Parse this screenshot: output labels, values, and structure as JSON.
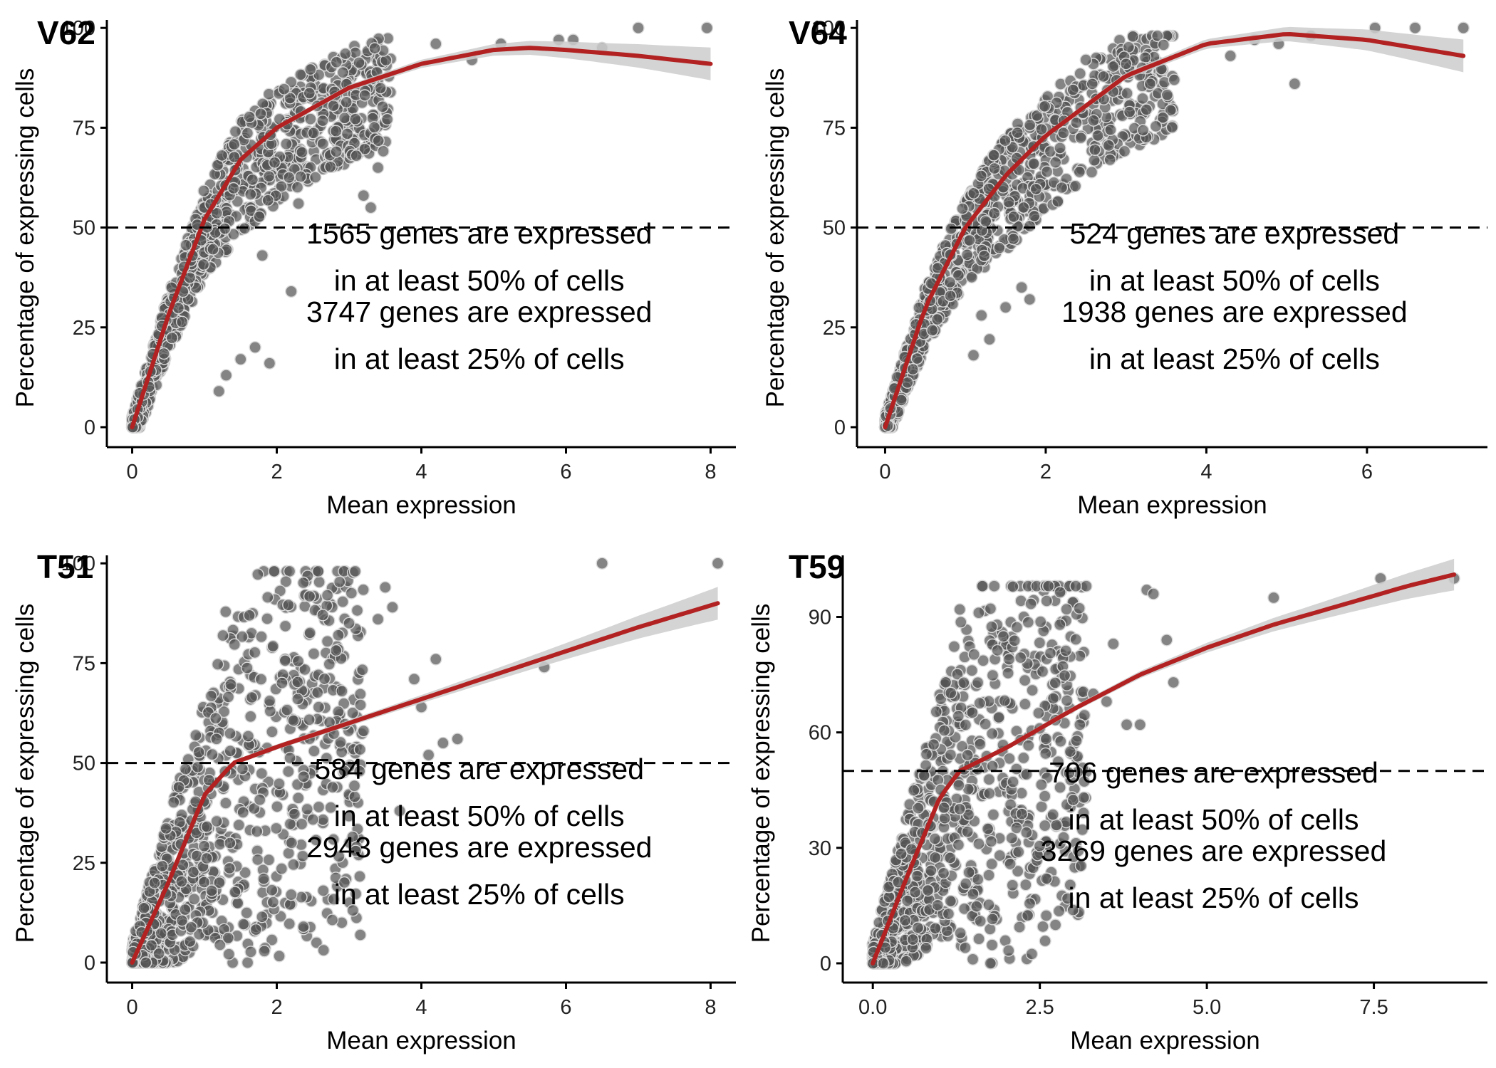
{
  "chart_data": [
    {
      "type": "scatter",
      "title": "V62",
      "xlabel": "Mean expression",
      "ylabel": "Percentage of expressing cells",
      "xlim": [
        -0.35,
        8.35
      ],
      "ylim": [
        -5,
        102
      ],
      "xticks": [
        0,
        2,
        4,
        6,
        8
      ],
      "yticks": [
        0,
        25,
        50,
        75,
        100
      ],
      "xtick_labels": [
        "0",
        "2",
        "4",
        "6",
        "8"
      ],
      "ytick_labels": [
        "0",
        "25",
        "50",
        "75",
        "100"
      ],
      "threshold_line": 50,
      "annotations": [
        "1565 genes are expressed",
        "in at least 50% of cells",
        "3747 genes are expressed",
        "in at least 25% of cells"
      ],
      "annotation_anchor": [
        4.8,
        46
      ],
      "cloud_type": "saturating",
      "trend": [
        [
          0,
          0
        ],
        [
          0.5,
          28
        ],
        [
          1,
          52
        ],
        [
          1.5,
          67
        ],
        [
          2,
          75
        ],
        [
          3,
          85
        ],
        [
          4,
          91
        ],
        [
          5,
          94.5
        ],
        [
          5.5,
          95
        ],
        [
          6,
          94.5
        ],
        [
          7,
          93
        ],
        [
          8,
          91
        ]
      ],
      "outliers": [
        [
          1.5,
          17
        ],
        [
          1.7,
          20
        ],
        [
          1.9,
          16
        ],
        [
          2.2,
          34
        ],
        [
          2.3,
          56
        ],
        [
          3.1,
          68
        ],
        [
          3.2,
          58
        ],
        [
          3.3,
          55
        ],
        [
          3.4,
          65
        ],
        [
          1.8,
          43
        ],
        [
          4.2,
          96
        ],
        [
          4.7,
          92
        ],
        [
          5.1,
          96
        ],
        [
          5.9,
          97
        ],
        [
          6.1,
          97
        ],
        [
          7,
          100
        ],
        [
          7.95,
          100
        ],
        [
          6.5,
          95
        ],
        [
          2.8,
          84
        ],
        [
          1.3,
          13
        ],
        [
          1.2,
          9
        ]
      ],
      "colors": {
        "points": "#555555",
        "trend": "#b22222",
        "band": "#cccccc"
      }
    },
    {
      "type": "scatter",
      "title": "V64",
      "xlabel": "Mean expression",
      "ylabel": "Percentage of expressing cells",
      "xlim": [
        -0.35,
        7.5
      ],
      "ylim": [
        -5,
        102
      ],
      "xticks": [
        0,
        2,
        4,
        6
      ],
      "yticks": [
        0,
        25,
        50,
        75,
        100
      ],
      "xtick_labels": [
        "0",
        "2",
        "4",
        "6"
      ],
      "ytick_labels": [
        "0",
        "25",
        "50",
        "75",
        "100"
      ],
      "threshold_line": 50,
      "annotations": [
        "524 genes are expressed",
        "in at least 50% of cells",
        "1938 genes are expressed",
        "in at least 25% of cells"
      ],
      "annotation_anchor": [
        4.35,
        46
      ],
      "cloud_type": "saturating",
      "trend": [
        [
          0,
          0
        ],
        [
          0.5,
          30
        ],
        [
          1,
          50
        ],
        [
          1.5,
          63
        ],
        [
          2,
          73
        ],
        [
          3,
          88
        ],
        [
          4,
          96
        ],
        [
          5,
          98.5
        ],
        [
          6,
          97
        ],
        [
          7.2,
          93
        ]
      ],
      "outliers": [
        [
          1.5,
          30
        ],
        [
          1.7,
          35
        ],
        [
          1.8,
          32
        ],
        [
          1.3,
          22
        ],
        [
          1.1,
          18
        ],
        [
          2.2,
          60
        ],
        [
          2.5,
          92
        ],
        [
          3,
          91
        ],
        [
          3.3,
          86
        ],
        [
          3.6,
          87
        ],
        [
          4.3,
          93
        ],
        [
          4.6,
          97
        ],
        [
          4.9,
          96
        ],
        [
          5.3,
          98
        ],
        [
          6.1,
          100
        ],
        [
          6.6,
          100
        ],
        [
          7.2,
          100
        ],
        [
          5.1,
          86
        ],
        [
          1.2,
          28
        ]
      ],
      "colors": {
        "points": "#555555",
        "trend": "#b22222",
        "band": "#cccccc"
      }
    },
    {
      "type": "scatter",
      "title": "T51",
      "xlabel": "Mean expression",
      "ylabel": "Percentage of expressing cells",
      "xlim": [
        -0.35,
        8.35
      ],
      "ylim": [
        -5,
        102
      ],
      "xticks": [
        0,
        2,
        4,
        6,
        8
      ],
      "yticks": [
        0,
        25,
        50,
        75,
        100
      ],
      "xtick_labels": [
        "0",
        "2",
        "4",
        "6",
        "8"
      ],
      "ytick_labels": [
        "0",
        "25",
        "50",
        "75",
        "100"
      ],
      "threshold_line": 50,
      "annotations": [
        "584 genes are expressed",
        "in at least 50% of cells",
        "2943 genes are expressed",
        "in at least 25% of cells"
      ],
      "annotation_anchor": [
        4.8,
        46
      ],
      "cloud_type": "broad",
      "trend": [
        [
          0,
          0
        ],
        [
          0.5,
          20
        ],
        [
          1,
          42
        ],
        [
          1.4,
          50
        ],
        [
          2,
          54
        ],
        [
          3,
          60
        ],
        [
          4,
          66
        ],
        [
          5,
          72
        ],
        [
          6,
          78
        ],
        [
          7,
          84
        ],
        [
          8.1,
          90
        ]
      ],
      "outliers": [
        [
          2.7,
          92
        ],
        [
          3.5,
          94
        ],
        [
          3.6,
          89
        ],
        [
          3.4,
          86
        ],
        [
          3,
          85
        ],
        [
          4.2,
          76
        ],
        [
          4.3,
          55
        ],
        [
          4.1,
          52
        ],
        [
          4.5,
          56
        ],
        [
          3.9,
          71
        ],
        [
          4,
          64
        ],
        [
          5.7,
          74
        ],
        [
          6.5,
          100
        ],
        [
          8.1,
          100
        ],
        [
          2.2,
          17
        ],
        [
          3.7,
          38
        ],
        [
          1.1,
          18
        ],
        [
          2.9,
          68
        ],
        [
          3.2,
          58
        ]
      ],
      "colors": {
        "points": "#555555",
        "trend": "#b22222",
        "band": "#cccccc"
      }
    },
    {
      "type": "scatter",
      "title": "T59",
      "xlabel": "Mean expression",
      "ylabel": "Percentage of expressing cells",
      "xlim": [
        -0.45,
        9.2
      ],
      "ylim": [
        -5,
        106
      ],
      "xticks": [
        0,
        2.5,
        5,
        7.5
      ],
      "yticks": [
        0,
        30,
        60,
        90
      ],
      "xtick_labels": [
        "0.0",
        "2.5",
        "5.0",
        "7.5"
      ],
      "ytick_labels": [
        "0",
        "30",
        "60",
        "90"
      ],
      "threshold_line": 50,
      "annotations": [
        "706 genes are expressed",
        "in at least 50% of cells",
        "3269 genes are expressed",
        "in at least 25% of cells"
      ],
      "annotation_anchor": [
        5.1,
        47
      ],
      "cloud_type": "broad",
      "trend": [
        [
          0,
          0
        ],
        [
          0.5,
          22
        ],
        [
          1,
          43
        ],
        [
          1.3,
          50
        ],
        [
          2,
          56
        ],
        [
          3,
          66
        ],
        [
          4,
          75
        ],
        [
          5,
          82
        ],
        [
          6,
          88
        ],
        [
          7,
          93
        ],
        [
          8,
          98
        ],
        [
          8.7,
          101
        ]
      ],
      "outliers": [
        [
          2.3,
          34
        ],
        [
          2.6,
          22
        ],
        [
          3.1,
          62
        ],
        [
          3.5,
          68
        ],
        [
          4,
          62
        ],
        [
          4.1,
          97
        ],
        [
          4.2,
          96
        ],
        [
          4.4,
          84
        ],
        [
          4.5,
          73
        ],
        [
          6,
          95
        ],
        [
          7.6,
          100
        ],
        [
          8.7,
          100
        ],
        [
          2.8,
          88
        ],
        [
          2.9,
          92
        ],
        [
          1.9,
          28
        ],
        [
          3.3,
          70
        ],
        [
          3.8,
          62
        ],
        [
          3.6,
          83
        ],
        [
          1.5,
          18
        ]
      ],
      "colors": {
        "points": "#555555",
        "trend": "#b22222",
        "band": "#cccccc"
      }
    }
  ]
}
